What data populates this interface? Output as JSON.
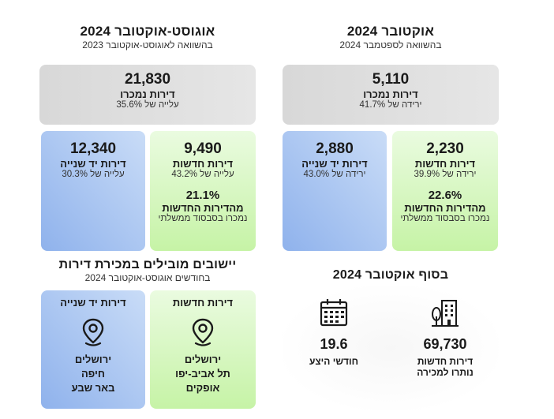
{
  "left": {
    "title": "אוגוסט-אוקטובר 2024",
    "subtitle": "בהשוואה לאוגוסט-אוקטובר 2023",
    "total": {
      "value": "21,830",
      "label": "דירות נמכרו",
      "change": "עלייה של 35.6%"
    },
    "secondhand": {
      "value": "12,340",
      "label": "דירות יד שנייה",
      "change": "עלייה של 30.3%"
    },
    "new": {
      "value": "9,490",
      "label": "דירות חדשות",
      "change": "עלייה של 43.2%"
    },
    "subsidy": {
      "pct": "21.1%",
      "label": "מהדירות החדשות",
      "note": "נמכרו בסבסוד ממשלתי"
    }
  },
  "right": {
    "title": "אוקטובר 2024",
    "subtitle": "בהשוואה לספטמבר 2024",
    "total": {
      "value": "5,110",
      "label": "דירות נמכרו",
      "change": "ירידה של 41.7%"
    },
    "secondhand": {
      "value": "2,880",
      "label": "דירות יד שנייה",
      "change": "ירידה של 43.0%"
    },
    "new": {
      "value": "2,230",
      "label": "דירות חדשות",
      "change": "ירידה של 39.9%"
    },
    "subsidy": {
      "pct": "22.6%",
      "label": "מהדירות החדשות",
      "note": "נמכרו בסבסוד ממשלתי"
    }
  },
  "leaders": {
    "title": "יישובים מובילים במכירת דירות",
    "subtitle": "בחודשים אוגוסט-אוקטובר 2024",
    "new": {
      "head": "דירות חדשות",
      "cities": [
        "ירושלים",
        "תל אביב-יפו",
        "אופקים"
      ]
    },
    "secondhand": {
      "head": "דירות יד שנייה",
      "cities": [
        "ירושלים",
        "חיפה",
        "באר שבע"
      ]
    }
  },
  "end_of_month": {
    "title": "בסוף אוקטובר 2024",
    "unsold": {
      "value": "69,730",
      "line1": "דירות חדשות",
      "line2": "נותרו למכירה"
    },
    "supply": {
      "value": "19.6",
      "label": "חודשי היצע"
    }
  },
  "colors": {
    "gray": "#dcdcdc",
    "blue": "#9dbbee",
    "green": "#c9f3ab"
  },
  "icons": [
    "location-pin-icon",
    "building-tree-icon",
    "calendar-icon"
  ]
}
